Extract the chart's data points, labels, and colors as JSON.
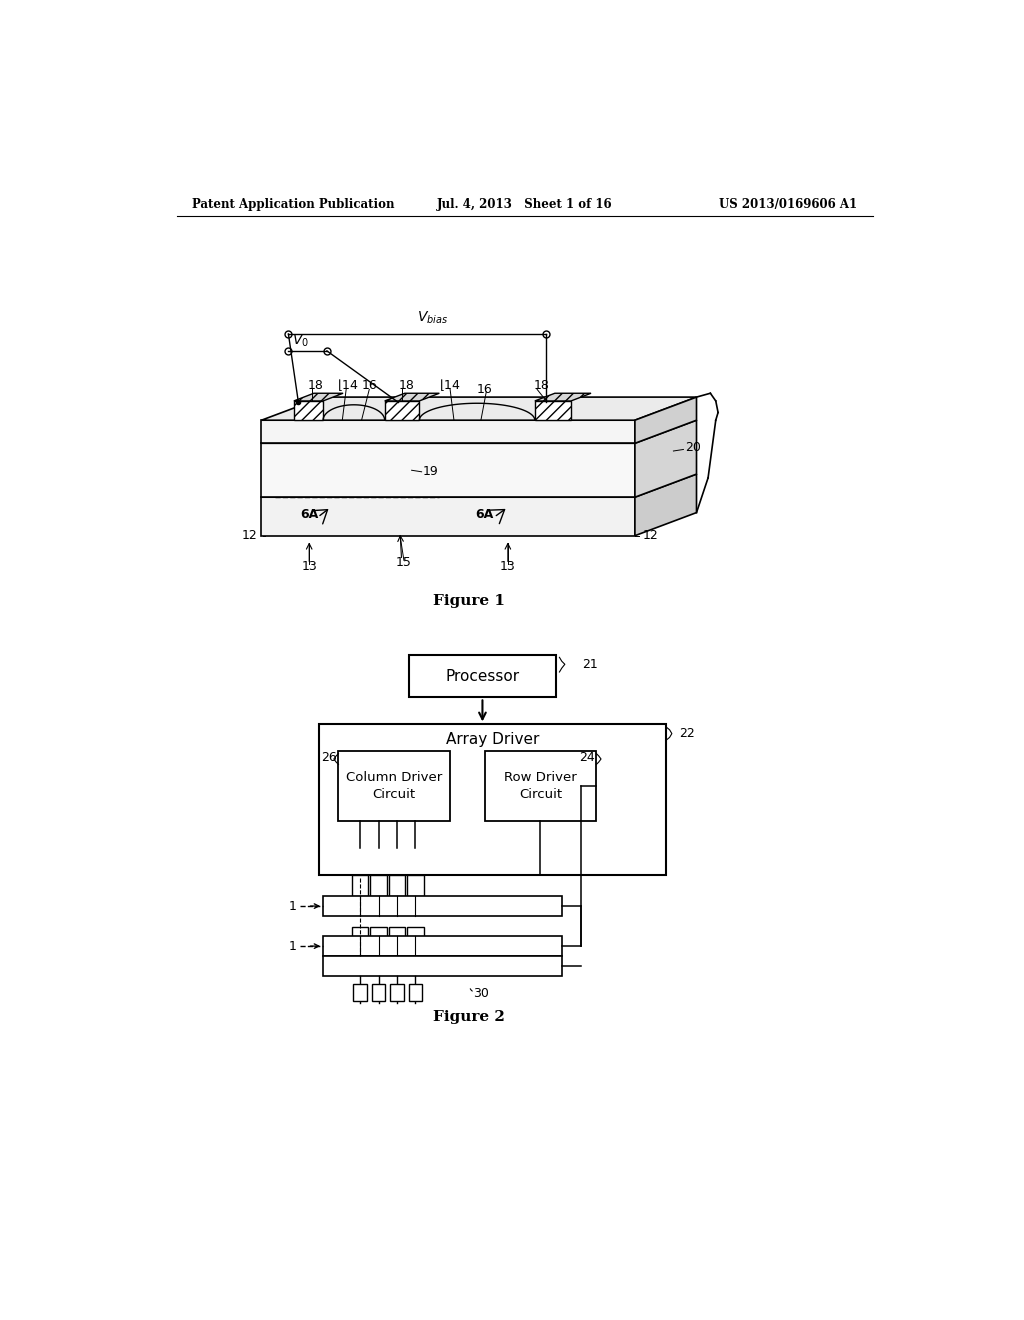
{
  "bg_color": "#ffffff",
  "header_left": "Patent Application Publication",
  "header_mid": "Jul. 4, 2013   Sheet 1 of 16",
  "header_right": "US 2013/0169606 A1",
  "fig1_caption": "Figure 1",
  "fig2_caption": "Figure 2"
}
